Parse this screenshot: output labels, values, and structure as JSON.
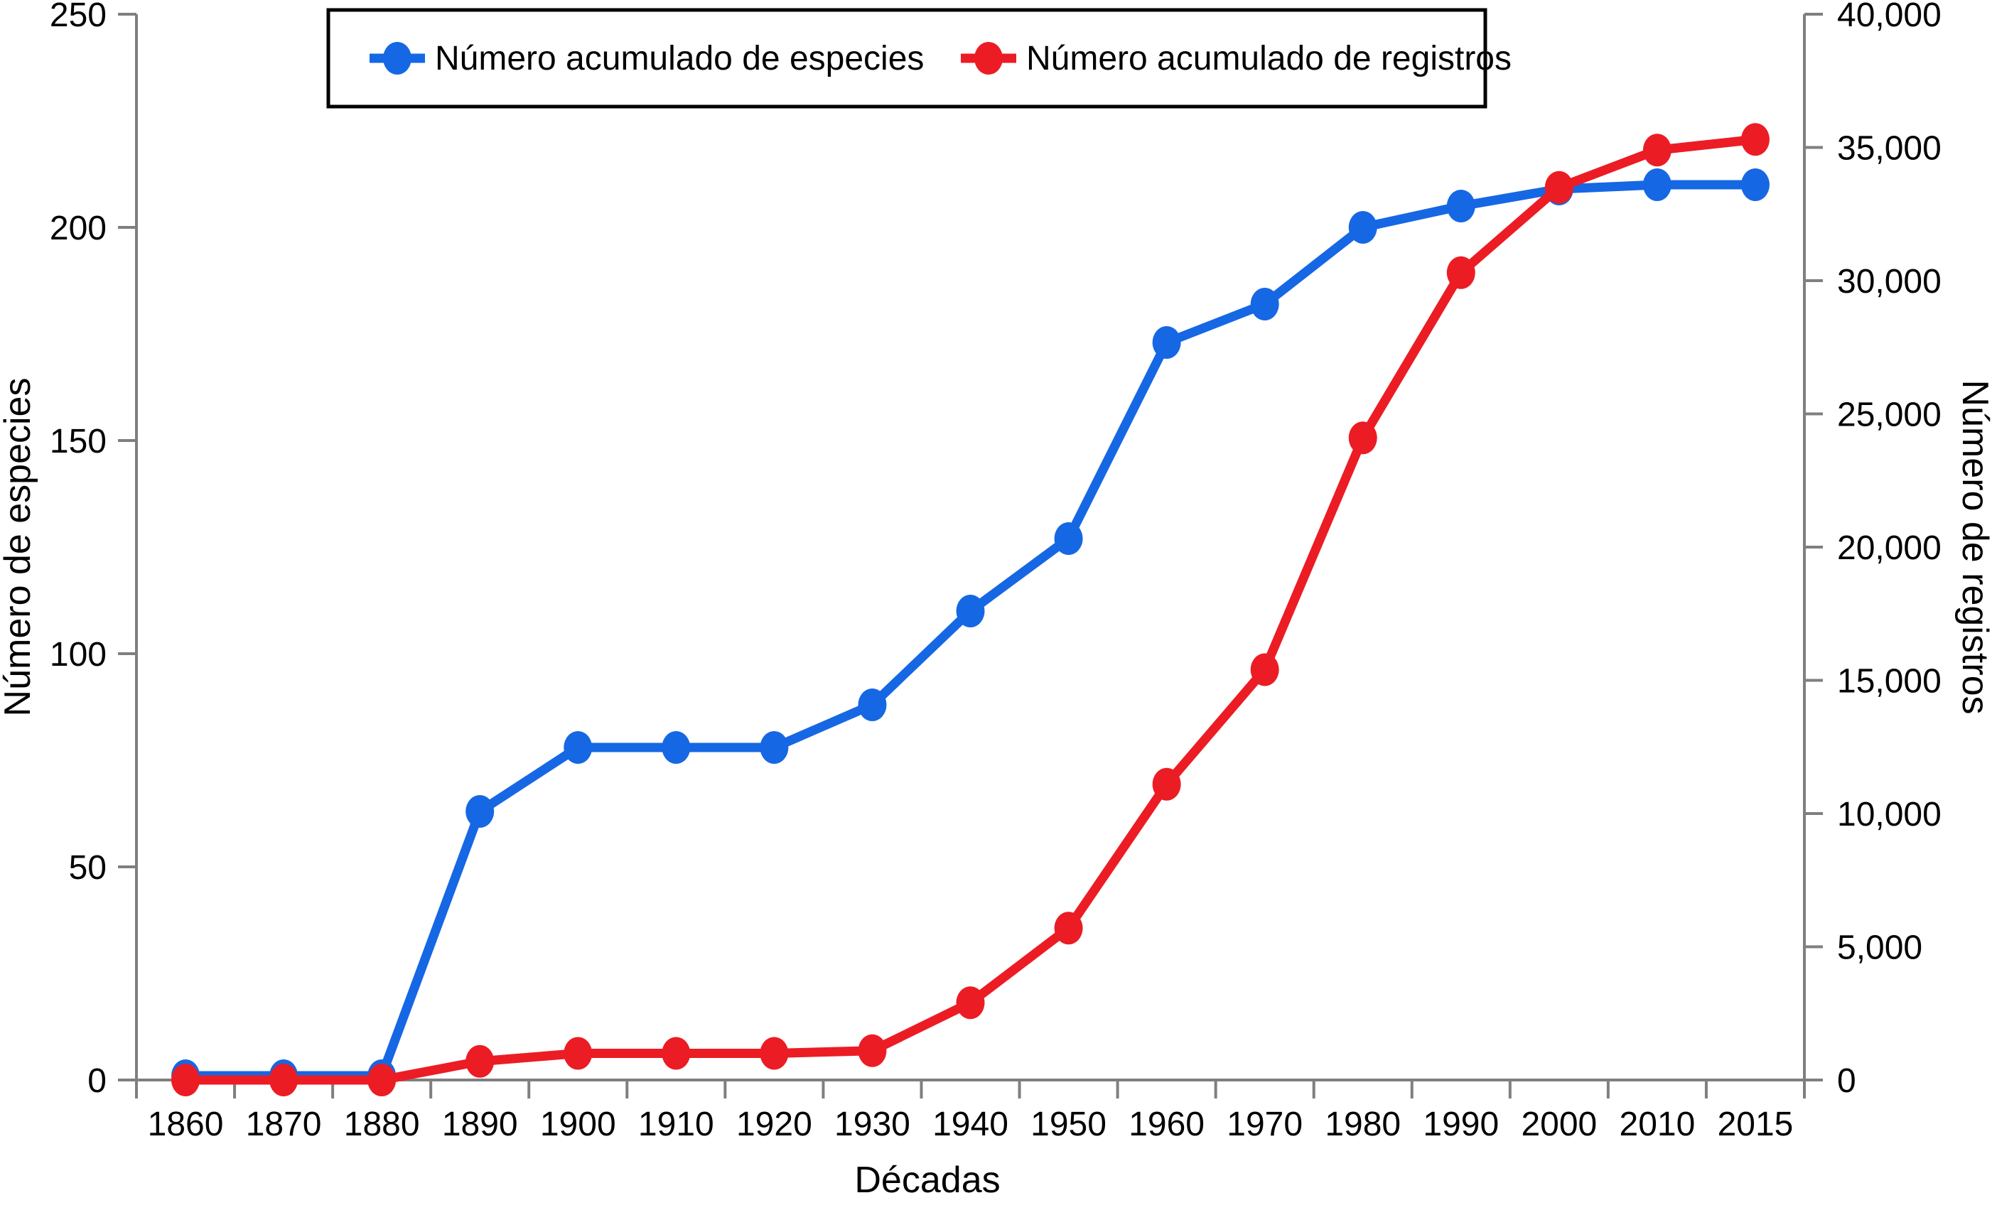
{
  "chart_data": {
    "type": "line",
    "title": "",
    "x_label": "Décadas",
    "categories": [
      "1860",
      "1870",
      "1880",
      "1890",
      "1900",
      "1910",
      "1920",
      "1930",
      "1940",
      "1950",
      "1960",
      "1970",
      "1980",
      "1990",
      "2000",
      "2010",
      "2015"
    ],
    "left_axis": {
      "label": "Número de especies",
      "min": 0,
      "max": 250,
      "ticks": [
        0,
        50,
        100,
        150,
        200,
        250
      ]
    },
    "right_axis": {
      "label": "Número de registros",
      "min": 0,
      "max": 40000,
      "ticks": [
        0,
        5000,
        10000,
        15000,
        20000,
        25000,
        30000,
        35000,
        40000
      ]
    },
    "series": [
      {
        "name": "Número acumulado de especies",
        "axis": "left",
        "color": "#1667e4",
        "marker": "ellipse",
        "values": [
          1,
          1,
          1,
          63,
          78,
          78,
          78,
          88,
          110,
          127,
          173,
          182,
          200,
          205,
          209,
          210,
          210
        ]
      },
      {
        "name": "Número acumulado de registros",
        "axis": "right",
        "color": "#ec1c24",
        "marker": "ellipse",
        "values": [
          0,
          0,
          0,
          700,
          1000,
          1000,
          1000,
          1100,
          2900,
          5700,
          11100,
          15400,
          24100,
          30300,
          33500,
          34900,
          35300
        ]
      }
    ],
    "legend_position": "top",
    "grid": false,
    "axis_color": "#7f7f7f",
    "text_color": "#000000",
    "background": "#ffffff"
  }
}
